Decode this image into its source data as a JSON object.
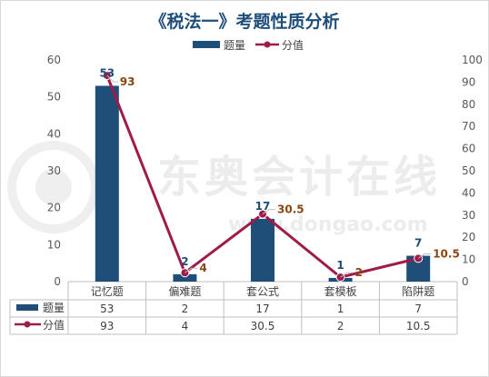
{
  "watermark": {
    "brand": "东奥会计在线",
    "url": "www.dongao.com"
  },
  "chart_data": {
    "type": "bar",
    "title": "《税法一》考题性质分析",
    "categories": [
      "记忆题",
      "偏难题",
      "套公式",
      "套模板",
      "陷阱题"
    ],
    "series": [
      {
        "name": "题量",
        "kind": "bar",
        "axis": "left",
        "color": "#1f4e79",
        "values": [
          53,
          2,
          17,
          1,
          7
        ]
      },
      {
        "name": "分值",
        "kind": "line",
        "axis": "right",
        "color": "#9e1b4a",
        "values": [
          93,
          4,
          30.5,
          2,
          10.5
        ]
      }
    ],
    "y_left": {
      "min": 0,
      "max": 60,
      "step": 10
    },
    "y_right": {
      "min": 0,
      "max": 100,
      "step": 10
    },
    "grid": false,
    "legend": "top-center",
    "data_table": true,
    "table_rows": [
      {
        "label": "题量",
        "values": [
          "53",
          "2",
          "17",
          "1",
          "7"
        ]
      },
      {
        "label": "分值",
        "values": [
          "93",
          "4",
          "30.5",
          "2",
          "10.5"
        ]
      }
    ]
  }
}
